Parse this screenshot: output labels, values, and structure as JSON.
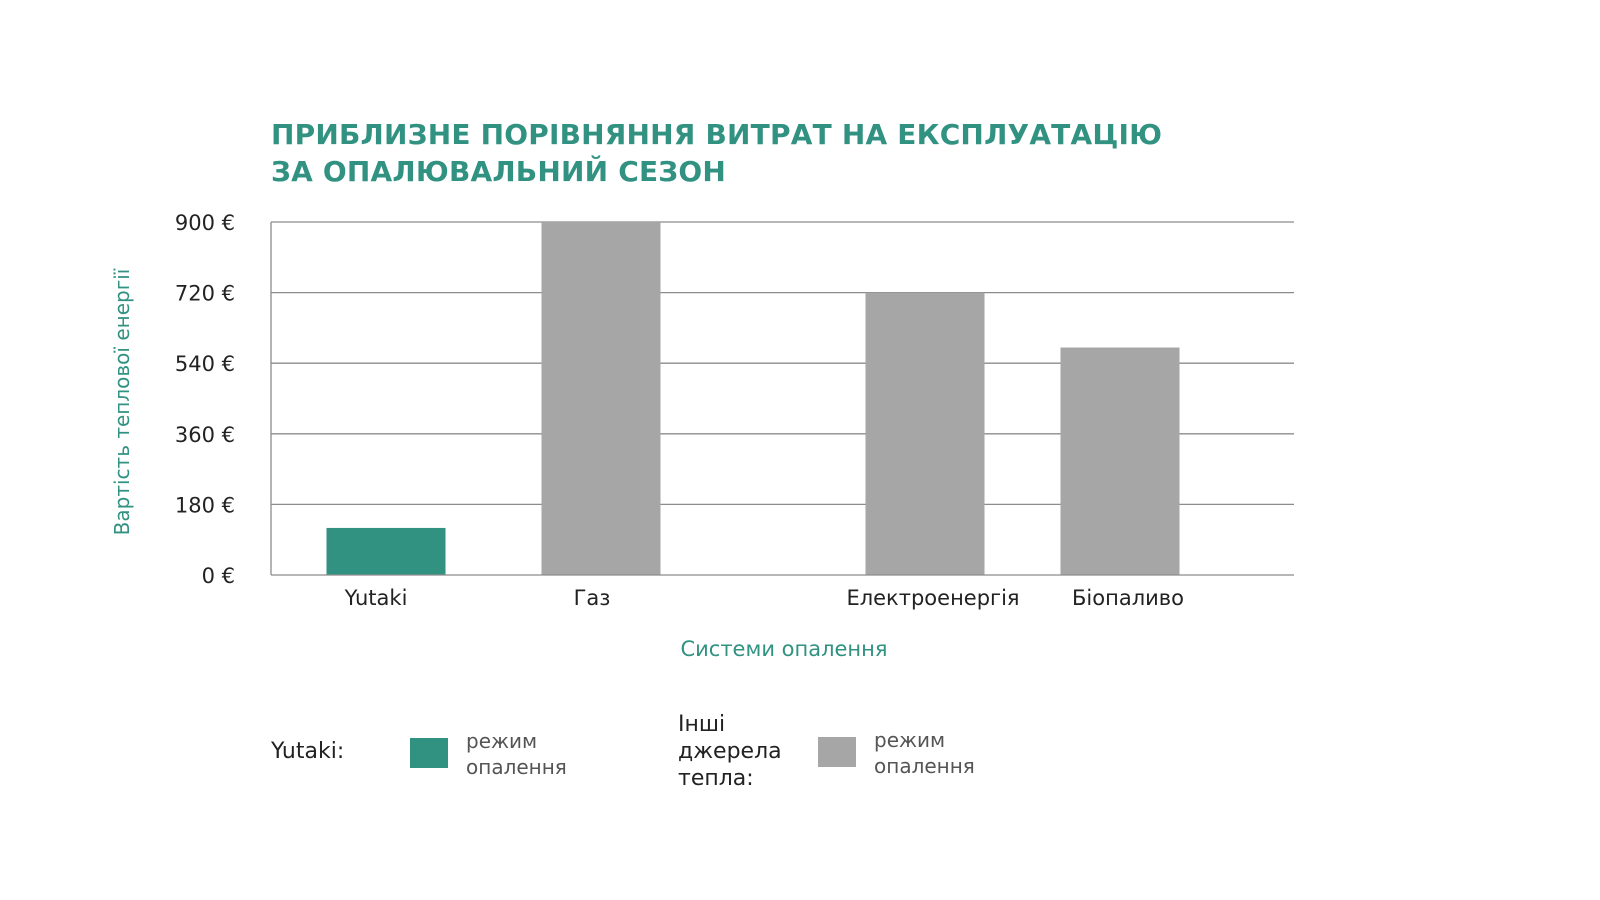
{
  "chart_data": {
    "type": "bar",
    "title_lines": [
      "ПРИБЛИЗНЕ ПОРІВНЯННЯ ВИТРАТ НА ЕКСПЛУАТАЦІЮ",
      "ЗА ОПАЛЮВАЛЬНИЙ СЕЗОН"
    ],
    "xlabel": "Системи опалення",
    "ylabel": "Вартість теплової енергії",
    "ylim": [
      0,
      900
    ],
    "yticks": [
      0,
      180,
      360,
      540,
      720,
      900
    ],
    "ytick_labels": [
      "0 €",
      "180 €",
      "360 €",
      "540 €",
      "720 €",
      "900 €"
    ],
    "grid": true,
    "categories": [
      "Yutaki",
      "Газ",
      "Електроенергія",
      "Біопаливо"
    ],
    "values": [
      120,
      900,
      720,
      580
    ],
    "bar_colors": [
      "#319282",
      "#a6a6a6",
      "#a6a6a6",
      "#a6a6a6"
    ]
  },
  "legend": {
    "yutaki_label": "Yutaki:",
    "yutaki_desc_lines": [
      "режим",
      "опалення"
    ],
    "yutaki_color": "#319282",
    "other_label_lines": [
      "Інші",
      "джерела",
      "тепла:"
    ],
    "other_desc_lines": [
      "режим",
      "опалення"
    ],
    "other_color": "#a6a6a6"
  },
  "colors": {
    "accent": "#319282",
    "bar_other": "#a6a6a6",
    "grid": "#8c8c8c",
    "text": "#222222"
  }
}
